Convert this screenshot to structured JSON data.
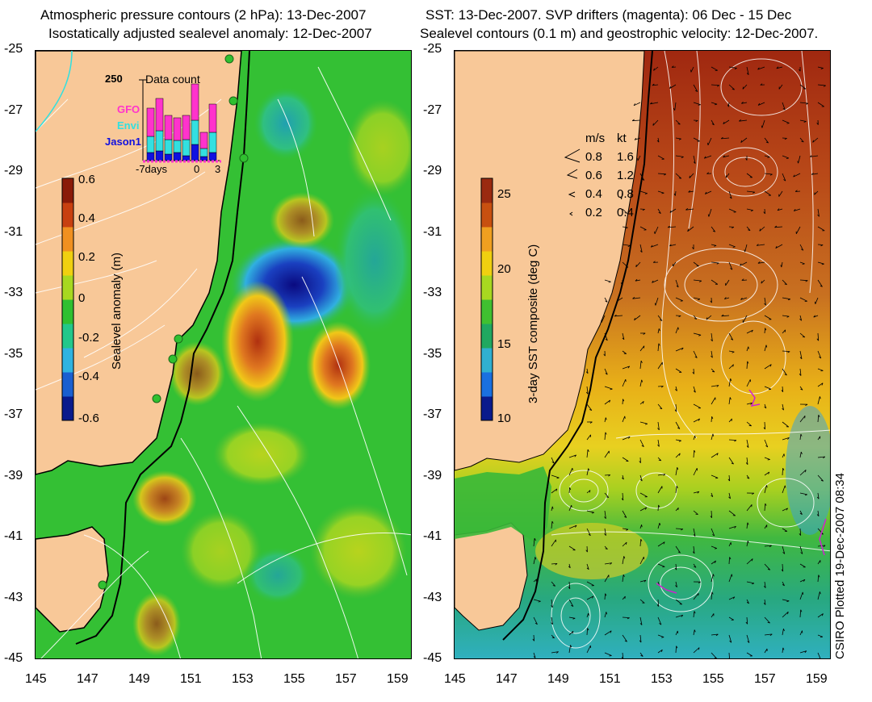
{
  "left_panel": {
    "title_line1": "Atmospheric pressure contours (2 hPa): 13-Dec-2007",
    "title_line2": "Isostatically adjusted sealevel anomaly: 12-Dec-2007",
    "y_ticks": [
      "-25",
      "-27",
      "-29",
      "-31",
      "-33",
      "-35",
      "-37",
      "-39",
      "-41",
      "-43",
      "-45"
    ],
    "x_ticks": [
      "145",
      "147",
      "149",
      "151",
      "153",
      "155",
      "157",
      "159"
    ],
    "colorbar": {
      "label": "Sealevel anomaly (m)",
      "ticks": [
        "0.6",
        "0.4",
        "0.2",
        "0",
        "-0.2",
        "-0.4",
        "-0.6"
      ],
      "colors": [
        "#0a1a8c",
        "#1a5fd0",
        "#2fb3e0",
        "#22c88a",
        "#30c030",
        "#a8d820",
        "#f0d010",
        "#f09020",
        "#c84010",
        "#8a1a08"
      ]
    },
    "inset": {
      "title": "Data count",
      "y_max_label": "250",
      "x_labels": [
        "-7days",
        "0",
        "3"
      ],
      "legend": [
        {
          "name": "GFO",
          "color": "#ff33cc"
        },
        {
          "name": "Envi",
          "color": "#33e0e0"
        },
        {
          "name": "Jason1",
          "color": "#1010e0"
        }
      ]
    }
  },
  "right_panel": {
    "title_line1": "SST: 13-Dec-2007. SVP drifters (magenta): 06 Dec - 15 Dec",
    "title_line2": "Sealevel contours (0.1 m) and geostrophic velocity: 12-Dec-2007.",
    "y_ticks": [
      "-25",
      "-27",
      "-29",
      "-31",
      "-33",
      "-35",
      "-37",
      "-39",
      "-41",
      "-43",
      "-45"
    ],
    "x_ticks": [
      "145",
      "147",
      "149",
      "151",
      "153",
      "155",
      "157",
      "159"
    ],
    "colorbar": {
      "label": "3-day SST composite (deg C)",
      "ticks": [
        "25",
        "20",
        "15",
        "10"
      ],
      "colors": [
        "#0a1a8c",
        "#1a70e0",
        "#30b0d0",
        "#20a860",
        "#40c030",
        "#a8d820",
        "#f0d010",
        "#f0a020",
        "#c85010",
        "#9a2a10"
      ]
    },
    "velocity_key": {
      "header_ms": "m/s",
      "header_kt": "kt",
      "rows": [
        {
          "ms": "0.8",
          "kt": "1.6"
        },
        {
          "ms": "0.6",
          "kt": "1.2"
        },
        {
          "ms": "0.4",
          "kt": "0.8"
        },
        {
          "ms": "0.2",
          "kt": "0.4"
        }
      ]
    }
  },
  "credit": "CSIRO Plotted 19-Dec-2007 08:34",
  "land_color": "#f8c898"
}
